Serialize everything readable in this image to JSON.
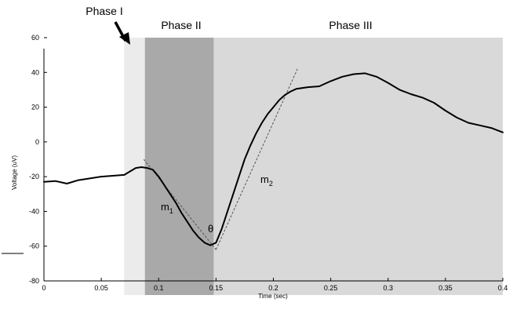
{
  "chart_data": {
    "type": "line",
    "title": "",
    "xlabel": "Time (sec)",
    "ylabel": "Voltage (uV)",
    "xlim": [
      0,
      0.4
    ],
    "ylim": [
      -80,
      60
    ],
    "x_ticks": [
      0,
      0.05,
      0.1,
      0.15,
      0.2,
      0.25,
      0.3,
      0.35,
      0.4
    ],
    "x_tick_labels": [
      "0",
      "0.05",
      "0.1",
      "0.15",
      "0.2",
      "0.25",
      "0.3",
      "0.35",
      "0.4"
    ],
    "y_ticks": [
      60,
      40,
      20,
      0,
      -20,
      -40,
      -60,
      -80
    ],
    "y_tick_labels": [
      "60",
      "40",
      "20",
      "0",
      "-20",
      "-40",
      "-60",
      "-80"
    ],
    "grid": false,
    "phases": [
      {
        "label": "Phase I",
        "x_start": 0.07,
        "x_end": 0.088,
        "color": "#ebebeb"
      },
      {
        "label": "Phase II",
        "x_start": 0.088,
        "x_end": 0.148,
        "color": "#a9a9a9"
      },
      {
        "label": "Phase III",
        "x_start": 0.148,
        "x_end": 0.4,
        "color": "#d9d9d9"
      }
    ],
    "series": [
      {
        "color": "#000000",
        "x": [
          0,
          0.01,
          0.02,
          0.03,
          0.04,
          0.05,
          0.06,
          0.07,
          0.075,
          0.08,
          0.085,
          0.09,
          0.095,
          0.1,
          0.105,
          0.11,
          0.115,
          0.12,
          0.125,
          0.13,
          0.135,
          0.14,
          0.145,
          0.15,
          0.155,
          0.16,
          0.165,
          0.17,
          0.175,
          0.18,
          0.185,
          0.19,
          0.195,
          0.2,
          0.205,
          0.21,
          0.215,
          0.22,
          0.23,
          0.24,
          0.25,
          0.26,
          0.27,
          0.28,
          0.29,
          0.3,
          0.31,
          0.32,
          0.33,
          0.34,
          0.35,
          0.36,
          0.37,
          0.38,
          0.39,
          0.4
        ],
        "values": [
          -23,
          -22.5,
          -24,
          -22,
          -21,
          -20,
          -19.5,
          -19,
          -17,
          -15,
          -14.5,
          -15,
          -16,
          -20,
          -25,
          -30,
          -35,
          -41,
          -46,
          -51,
          -55,
          -58,
          -59.5,
          -58,
          -50,
          -40,
          -30,
          -20,
          -10,
          -2,
          5,
          11,
          16,
          20,
          24,
          27,
          29,
          30.5,
          31.5,
          32,
          35,
          37.5,
          39,
          39.5,
          37.5,
          34,
          30,
          27.5,
          25.5,
          22.5,
          18,
          14,
          11,
          9.5,
          8,
          5.5
        ]
      }
    ],
    "tangent_lines": [
      {
        "name": "m1",
        "x": [
          0.087,
          0.15
        ],
        "values": [
          -10,
          -62
        ]
      },
      {
        "name": "m2",
        "x": [
          0.15,
          0.221
        ],
        "values": [
          -62,
          42
        ]
      }
    ],
    "annotations": {
      "m1": {
        "main": "m",
        "sub": "1"
      },
      "m2": {
        "main": "m",
        "sub": "2"
      },
      "angle": "θ",
      "arrow_label": "Phase I"
    }
  }
}
